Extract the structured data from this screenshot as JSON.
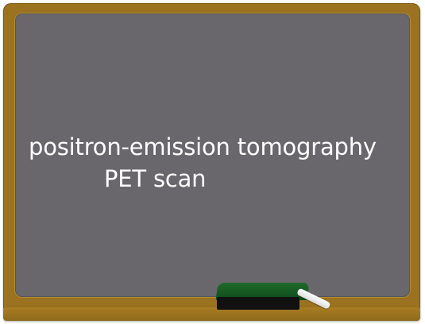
{
  "chalkboard": {
    "line1": "positron-emission tomography",
    "line2": "PET scan"
  }
}
